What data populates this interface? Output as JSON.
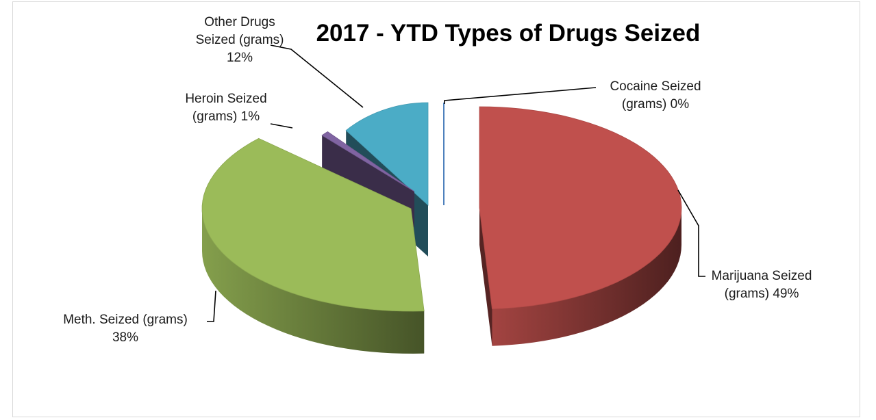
{
  "chart_data": {
    "type": "pie",
    "title": "2017 - YTD Types of Drugs Seized",
    "legend": "none",
    "slices": [
      {
        "id": "marijuana",
        "lines": [
          "Marijuana Seized",
          "(grams) 49%"
        ],
        "percent": 49,
        "color": "#c0504d"
      },
      {
        "id": "meth",
        "lines": [
          "Meth. Seized (grams)",
          "38%"
        ],
        "percent": 38,
        "color": "#9bbb59"
      },
      {
        "id": "heroin",
        "lines": [
          "Heroin Seized",
          "(grams) 1%"
        ],
        "percent": 1,
        "color": "#8064a2"
      },
      {
        "id": "other",
        "lines": [
          "Other Drugs",
          "Seized (grams)",
          "12%"
        ],
        "percent": 12,
        "color": "#4bacc6"
      },
      {
        "id": "cocaine",
        "lines": [
          "Cocaine Seized",
          "(grams) 0%"
        ],
        "percent": 0,
        "color": "#4f81bd"
      }
    ]
  }
}
